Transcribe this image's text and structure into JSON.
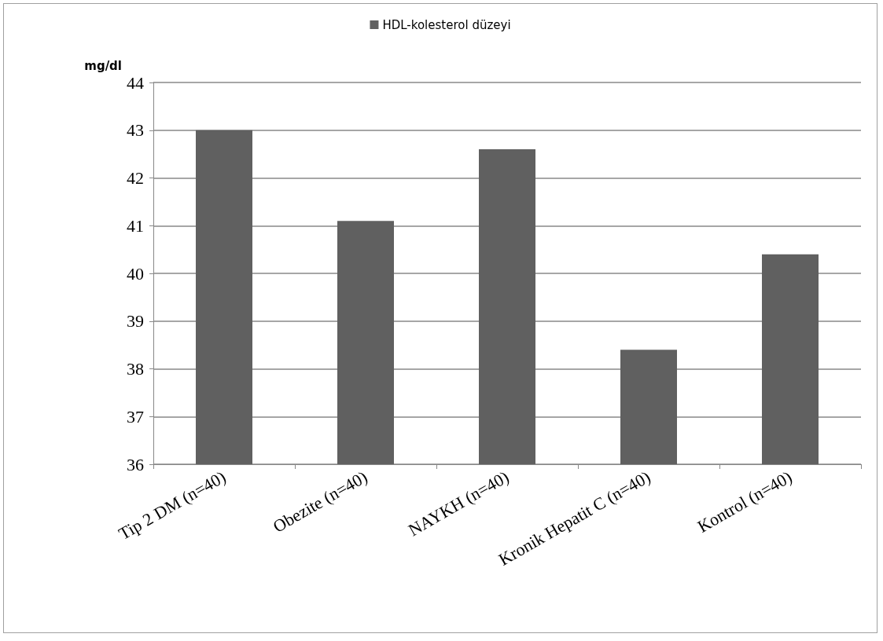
{
  "chart_data": {
    "type": "bar",
    "ylabel": "mg/dl",
    "categories": [
      "Tip 2 DM (n=40)",
      "Obezite (n=40)",
      "NAYKH (n=40)",
      "Kronik Hepatit C (n=40)",
      "Kontrol (n=40)"
    ],
    "series": [
      {
        "name": "HDL-kolesterol düzeyi",
        "color": "#606060",
        "values": [
          43.0,
          41.1,
          42.6,
          38.4,
          40.4
        ]
      }
    ],
    "ylim": [
      36,
      44
    ],
    "yticks": [
      36,
      37,
      38,
      39,
      40,
      41,
      42,
      43,
      44
    ],
    "grid": "y",
    "legend": "top"
  }
}
